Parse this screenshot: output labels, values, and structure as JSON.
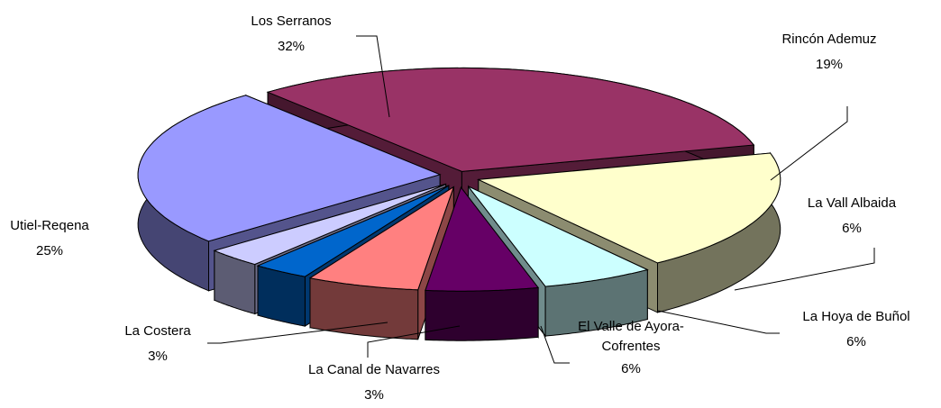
{
  "chart_data": {
    "type": "pie3d",
    "categories": [
      "Los Serranos",
      "Rincón Ademuz",
      "La Vall Albaida",
      "La Hoya de Buñol",
      "El Valle de Ayora-Cofrentes",
      "La Canal de Navarres",
      "La Costera",
      "Utiel-Reqena"
    ],
    "values": [
      32,
      19,
      6,
      6,
      6,
      3,
      3,
      25
    ],
    "value_labels": [
      "32%",
      "19%",
      "6%",
      "6%",
      "6%",
      "3%",
      "3%",
      "25%"
    ],
    "colors": [
      "#993366",
      "#FFFFCC",
      "#CCFFFF",
      "#660066",
      "#FF8080",
      "#0066CC",
      "#CCCCFF",
      "#9999FF"
    ]
  }
}
